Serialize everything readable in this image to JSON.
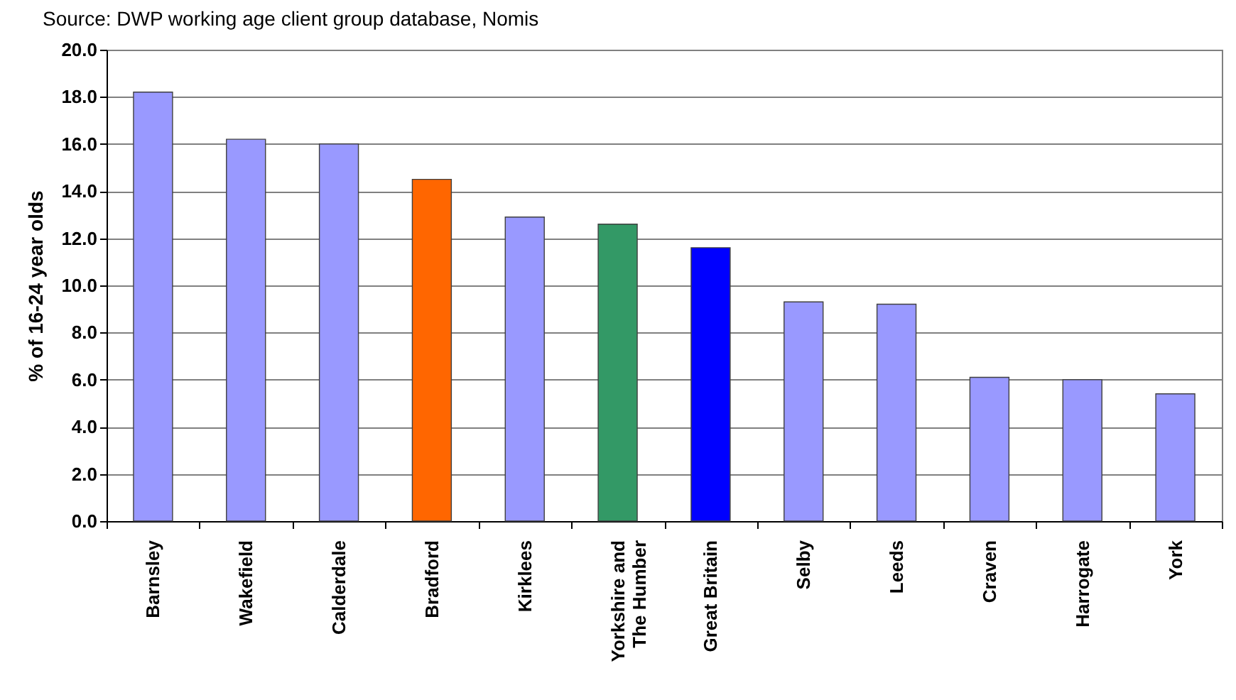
{
  "chart_data": {
    "type": "bar",
    "ylabel": "% of 16-24 year olds",
    "annotations": [
      "Source: DWP working age client group database, Nomis"
    ],
    "categories": [
      "Barnsley",
      "Wakefield",
      "Calderdale",
      "Bradford",
      "Kirklees",
      "Yorkshire and The Humber",
      "Great Britain",
      "Selby",
      "Leeds",
      "Craven",
      "Harrogate",
      "York"
    ],
    "values": [
      18.2,
      16.2,
      16.0,
      14.5,
      12.9,
      12.6,
      11.6,
      9.3,
      9.2,
      6.1,
      6.0,
      5.4
    ],
    "colors": [
      "#9999ff",
      "#9999ff",
      "#9999ff",
      "#ff6600",
      "#9999ff",
      "#339966",
      "#0000ff",
      "#9999ff",
      "#9999ff",
      "#9999ff",
      "#9999ff",
      "#9999ff"
    ],
    "ylim": [
      0,
      20
    ],
    "yticks": [
      {
        "value": 0,
        "label": "0.0"
      },
      {
        "value": 2,
        "label": "2.0"
      },
      {
        "value": 4,
        "label": "4.0"
      },
      {
        "value": 6,
        "label": "6.0"
      },
      {
        "value": 8,
        "label": "8.0"
      },
      {
        "value": 10,
        "label": "10.0"
      },
      {
        "value": 12,
        "label": "12.0"
      },
      {
        "value": 14,
        "label": "14.0"
      },
      {
        "value": 16,
        "label": "16.0"
      },
      {
        "value": 18,
        "label": "18.0"
      },
      {
        "value": 20,
        "label": "20.0"
      }
    ],
    "grid": "y",
    "legend": false
  }
}
